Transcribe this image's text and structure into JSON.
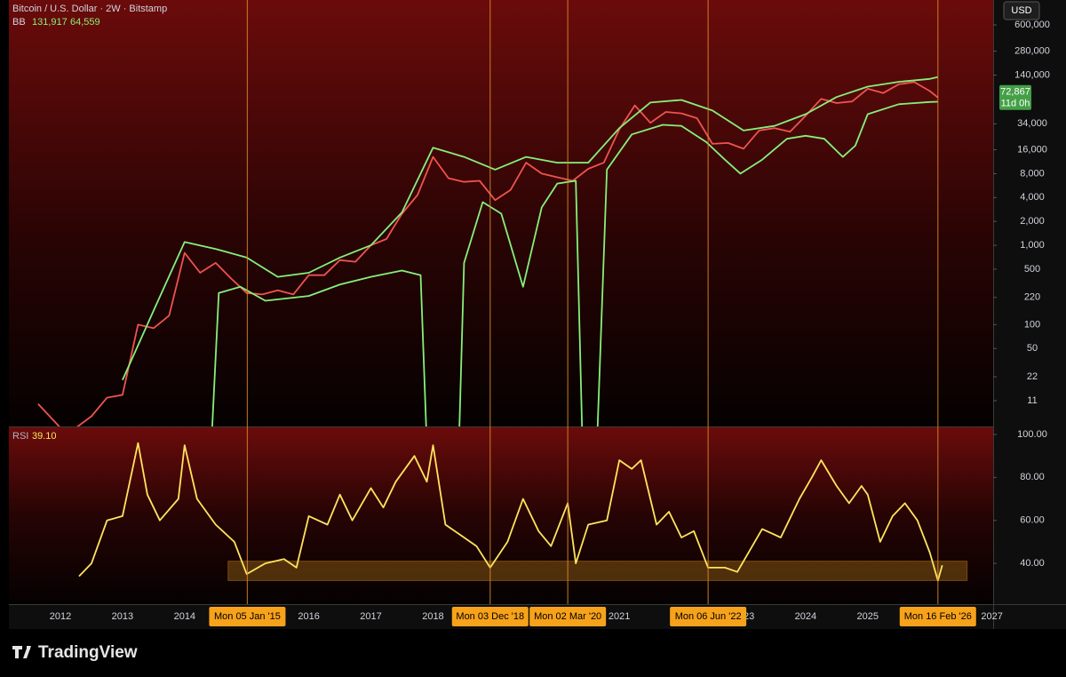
{
  "header": {
    "title": "Bitcoin / U.S. Dollar · 2W · Bitstamp",
    "currency": "USD"
  },
  "chart_data": [
    {
      "type": "line",
      "log": true,
      "grid": false,
      "indicator": "BB",
      "indicator_values": [
        {
          "value": 131917,
          "label": "131,917"
        },
        {
          "value": 64559,
          "label": "64,559"
        }
      ],
      "last_price": {
        "value": 72867,
        "label": "72,867"
      },
      "countdown": "11d 0h",
      "xlim": [
        2011.17,
        2027.02
      ],
      "ylim": [
        5.2,
        1236000
      ],
      "yticks": [
        {
          "value": 600000,
          "label": "600,000"
        },
        {
          "value": 280000,
          "label": "280,000"
        },
        {
          "value": 140000,
          "label": "140,000"
        },
        {
          "value": 34000,
          "label": "34,000"
        },
        {
          "value": 16000,
          "label": "16,000"
        },
        {
          "value": 8000,
          "label": "8,000"
        },
        {
          "value": 4000,
          "label": "4,000"
        },
        {
          "value": 2000,
          "label": "2,000"
        },
        {
          "value": 1000,
          "label": "1,000"
        },
        500,
        220,
        100,
        50,
        22,
        11
      ],
      "series": [
        {
          "color": "#ef5350",
          "x": [
            2011.64,
            2012.0,
            2012.25,
            2012.5,
            2012.75,
            2013.0,
            2013.25,
            2013.5,
            2013.75,
            2014.0,
            2014.25,
            2014.5,
            2014.75,
            2015.0,
            2015.25,
            2015.5,
            2015.75,
            2016.0,
            2016.25,
            2016.5,
            2016.75,
            2017.0,
            2017.25,
            2017.5,
            2017.75,
            2018.0,
            2018.25,
            2018.5,
            2018.75,
            2019.0,
            2019.25,
            2019.5,
            2019.75,
            2020.0,
            2020.25,
            2020.5,
            2020.75,
            2021.0,
            2021.25,
            2021.5,
            2021.75,
            2022.0,
            2022.25,
            2022.5,
            2022.75,
            2023.0,
            2023.25,
            2023.5,
            2023.75,
            2024.0,
            2024.25,
            2024.5,
            2024.75,
            2025.0,
            2025.25,
            2025.5,
            2025.75,
            2026.0,
            2026.13
          ],
          "values": [
            10,
            5,
            5,
            7,
            12,
            13,
            100,
            90,
            130,
            800,
            450,
            600,
            380,
            250,
            240,
            270,
            240,
            420,
            420,
            650,
            620,
            1000,
            1200,
            2500,
            4300,
            13000,
            7000,
            6300,
            6500,
            3700,
            5000,
            11000,
            8000,
            7200,
            6500,
            9200,
            11000,
            29000,
            58000,
            35000,
            48000,
            46000,
            40000,
            19000,
            19500,
            16500,
            28000,
            30000,
            27000,
            43000,
            70000,
            62000,
            65000,
            94000,
            83000,
            107000,
            114000,
            88000,
            72867
          ]
        },
        {
          "color": "#86f07a",
          "x": [
            2013.0,
            2013.5,
            2014.0,
            2014.5,
            2015.0,
            2015.5,
            2016.0,
            2016.5,
            2017.0,
            2017.5,
            2018.0,
            2018.5,
            2019.0,
            2019.5,
            2020.0,
            2020.5,
            2021.0,
            2021.5,
            2022.0,
            2022.5,
            2023.0,
            2023.5,
            2024.0,
            2024.5,
            2025.0,
            2025.5,
            2026.0,
            2026.13
          ],
          "values": [
            20,
            150,
            1100,
            900,
            700,
            400,
            450,
            700,
            1000,
            2600,
            17000,
            13000,
            9000,
            13000,
            11000,
            11000,
            30000,
            63000,
            68000,
            50000,
            28000,
            32000,
            45000,
            74000,
            100000,
            115000,
            125000,
            131917
          ]
        },
        {
          "color": "#86f07a",
          "x": [
            2014.4,
            2014.55,
            2014.9,
            2015.3,
            2016.0,
            2016.5,
            2017.0,
            2017.5,
            2017.8,
            2017.9,
            2018.0,
            2018.4,
            2018.5,
            2018.8,
            2019.1,
            2019.45,
            2019.75,
            2020.0,
            2020.3,
            2020.4,
            2020.5,
            2020.65,
            2020.8,
            2021.2,
            2021.7,
            2022.0,
            2022.4,
            2022.7,
            2022.95,
            2023.3,
            2023.7,
            2024.0,
            2024.3,
            2024.6,
            2024.8,
            2025.0,
            2025.5,
            2026.0,
            2026.13
          ],
          "values": [
            1,
            250,
            300,
            200,
            230,
            320,
            400,
            480,
            420,
            3,
            null,
            1,
            600,
            3500,
            2500,
            300,
            3000,
            6000,
            6500,
            5,
            null,
            5,
            9000,
            25000,
            33000,
            32000,
            20000,
            12000,
            8000,
            12000,
            22000,
            24000,
            22000,
            13000,
            18000,
            45000,
            60000,
            64000,
            64559
          ]
        }
      ]
    },
    {
      "type": "line",
      "grid": false,
      "indicator": "RSI",
      "indicator_values": [
        {
          "value": 39.1,
          "label": "39.10"
        }
      ],
      "xlim": [
        2011.17,
        2027.02
      ],
      "ylim": [
        21,
        103.3
      ],
      "yticks": [
        {
          "value": 100,
          "label": "100.00"
        },
        {
          "value": 80,
          "label": "80.00"
        },
        {
          "value": 60,
          "label": "60.00"
        },
        {
          "value": 40,
          "label": "40.00"
        }
      ],
      "zone": {
        "x": [
          2014.7,
          2026.6
        ],
        "y": [
          32,
          41
        ]
      },
      "series": [
        {
          "color": "#ffe45c",
          "x": [
            2012.3,
            2012.5,
            2012.75,
            2013.0,
            2013.25,
            2013.4,
            2013.6,
            2013.9,
            2014.0,
            2014.2,
            2014.5,
            2014.8,
            2015.0,
            2015.3,
            2015.6,
            2015.8,
            2016.0,
            2016.3,
            2016.5,
            2016.7,
            2017.0,
            2017.2,
            2017.4,
            2017.7,
            2017.9,
            2018.0,
            2018.2,
            2018.5,
            2018.7,
            2018.92,
            2019.2,
            2019.45,
            2019.7,
            2019.9,
            2020.17,
            2020.3,
            2020.5,
            2020.8,
            2021.0,
            2021.2,
            2021.35,
            2021.6,
            2021.8,
            2022.0,
            2022.2,
            2022.43,
            2022.7,
            2022.9,
            2023.1,
            2023.3,
            2023.6,
            2023.9,
            2024.1,
            2024.25,
            2024.5,
            2024.7,
            2024.9,
            2025.0,
            2025.2,
            2025.4,
            2025.6,
            2025.8,
            2026.0,
            2026.13,
            2026.2
          ],
          "values": [
            34,
            40,
            60,
            62,
            96,
            72,
            60,
            70,
            95,
            70,
            58,
            50,
            35,
            40,
            42,
            38,
            62,
            58,
            72,
            60,
            75,
            66,
            78,
            90,
            78,
            95,
            58,
            52,
            48,
            38,
            50,
            70,
            55,
            48,
            68,
            40,
            58,
            60,
            88,
            84,
            88,
            58,
            64,
            52,
            55,
            38,
            38,
            36,
            46,
            56,
            52,
            70,
            80,
            88,
            76,
            68,
            76,
            72,
            50,
            62,
            68,
            60,
            45,
            32,
            39.1
          ]
        }
      ]
    }
  ],
  "xticks": [
    2012,
    2013,
    2014,
    2015,
    2016,
    2017,
    2018,
    2019,
    2020,
    2021,
    2022,
    2023,
    2024,
    2025,
    2026,
    2027
  ],
  "time_markers": [
    {
      "value": 2015.01,
      "label": "Mon 05 Jan '15"
    },
    {
      "value": 2018.92,
      "label": "Mon 03 Dec '18"
    },
    {
      "value": 2020.17,
      "label": "Mon 02 Mar '20"
    },
    {
      "value": 2022.43,
      "label": "Mon 06 Jun '22"
    },
    {
      "value": 2026.13,
      "label": "Mon 16 Feb '26"
    }
  ],
  "footer": {
    "brand": "TradingView"
  }
}
